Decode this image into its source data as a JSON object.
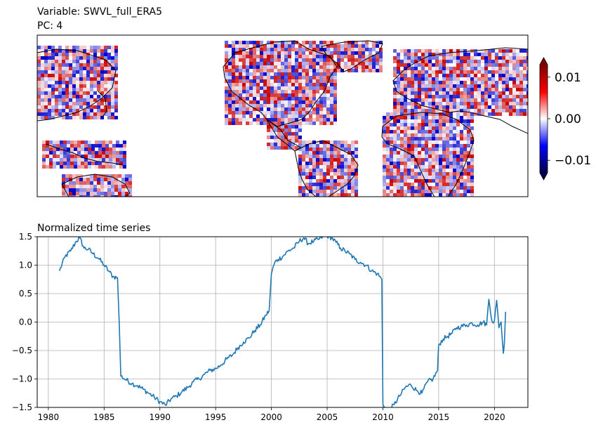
{
  "chart_data": [
    {
      "type": "heatmap",
      "title_line1": "Variable: SWVL_full_ERA5",
      "title_line2": "PC: 4",
      "colorbar": {
        "ticks": [
          {
            "value": 0.01,
            "label": "0.01"
          },
          {
            "value": 0.0,
            "label": "0.00"
          },
          {
            "value": -0.01,
            "label": "−0.01"
          }
        ],
        "vmin": -0.013,
        "vmax": 0.013,
        "colormap": "seismic",
        "extend": "both"
      },
      "colors": {
        "negative": "#0000cc",
        "positive": "#cc0000",
        "center": "#ffffff",
        "coast": "#000000"
      }
    },
    {
      "type": "line",
      "title": "Normalized time series",
      "xlim": [
        1979,
        2023
      ],
      "ylim": [
        -1.5,
        1.5
      ],
      "xticks": [
        1980,
        1985,
        1990,
        1995,
        2000,
        2005,
        2010,
        2015,
        2020
      ],
      "yticks": [
        {
          "value": 1.5,
          "label": "1.5"
        },
        {
          "value": 1.0,
          "label": "1.0"
        },
        {
          "value": 0.5,
          "label": "0.5"
        },
        {
          "value": 0.0,
          "label": "0.0"
        },
        {
          "value": -0.5,
          "label": "−0.5"
        },
        {
          "value": -1.0,
          "label": "−1.0"
        },
        {
          "value": -1.5,
          "label": "−1.5"
        }
      ],
      "grid": true,
      "line_color": "#1f77b4",
      "series": [
        {
          "x": [
            1981.0,
            1981.5,
            1982.0,
            1982.5,
            1982.8,
            1983.2,
            1983.6,
            1984.0,
            1984.5,
            1985.0,
            1985.4,
            1985.8,
            1986.2,
            1986.35,
            1986.5,
            1987.0,
            1987.5,
            1988.0,
            1988.5,
            1989.0,
            1989.5,
            1990.0,
            1990.5,
            1991.0,
            1991.5,
            1992.0,
            1992.5,
            1993.0,
            1993.5,
            1994.0,
            1994.5,
            1995.0,
            1995.5,
            1996.0,
            1996.5,
            1997.0,
            1997.5,
            1998.0,
            1998.5,
            1999.0,
            1999.5,
            1999.8,
            2000.0,
            2000.3,
            2000.6,
            2001.0,
            2001.5,
            2002.0,
            2002.5,
            2002.9,
            2003.3,
            2003.8,
            2004.2,
            2004.6,
            2005.0,
            2005.4,
            2005.8,
            2006.2,
            2006.6,
            2007.0,
            2007.5,
            2008.0,
            2008.5,
            2009.0,
            2009.5,
            2009.9,
            2010.0,
            2010.2,
            2010.6,
            2011.0,
            2011.5,
            2012.0,
            2012.5,
            2013.0,
            2013.5,
            2014.0,
            2014.5,
            2014.9,
            2015.0,
            2015.4,
            2015.8,
            2016.2,
            2016.6,
            2017.0,
            2017.5,
            2018.0,
            2018.5,
            2019.0,
            2019.3,
            2019.5,
            2019.8,
            2020.0,
            2020.2,
            2020.4,
            2020.6,
            2020.7,
            2020.8,
            2020.9,
            2021.0
          ],
          "y": [
            0.9,
            1.15,
            1.25,
            1.42,
            1.48,
            1.3,
            1.28,
            1.2,
            1.12,
            1.0,
            0.9,
            0.8,
            0.78,
            0.0,
            -0.95,
            -1.02,
            -1.08,
            -1.12,
            -1.18,
            -1.25,
            -1.32,
            -1.4,
            -1.46,
            -1.35,
            -1.3,
            -1.22,
            -1.15,
            -1.05,
            -1.0,
            -0.92,
            -0.85,
            -0.82,
            -0.75,
            -0.65,
            -0.58,
            -0.45,
            -0.35,
            -0.28,
            -0.15,
            -0.05,
            0.12,
            0.2,
            0.85,
            1.05,
            1.1,
            1.15,
            1.25,
            1.3,
            1.42,
            1.48,
            1.38,
            1.42,
            1.45,
            1.5,
            1.52,
            1.48,
            1.4,
            1.3,
            1.25,
            1.2,
            1.1,
            1.05,
            1.0,
            0.9,
            0.85,
            0.75,
            -1.45,
            -1.5,
            -1.55,
            -1.45,
            -1.3,
            -1.15,
            -1.1,
            -1.2,
            -1.25,
            -1.05,
            -1.0,
            -0.85,
            -0.4,
            -0.3,
            -0.25,
            -0.2,
            -0.1,
            -0.08,
            -0.05,
            -0.02,
            -0.05,
            0.0,
            -0.05,
            0.4,
            0.0,
            0.02,
            0.38,
            -0.1,
            0.0,
            -0.3,
            -0.55,
            -0.35,
            0.18
          ]
        }
      ]
    }
  ]
}
